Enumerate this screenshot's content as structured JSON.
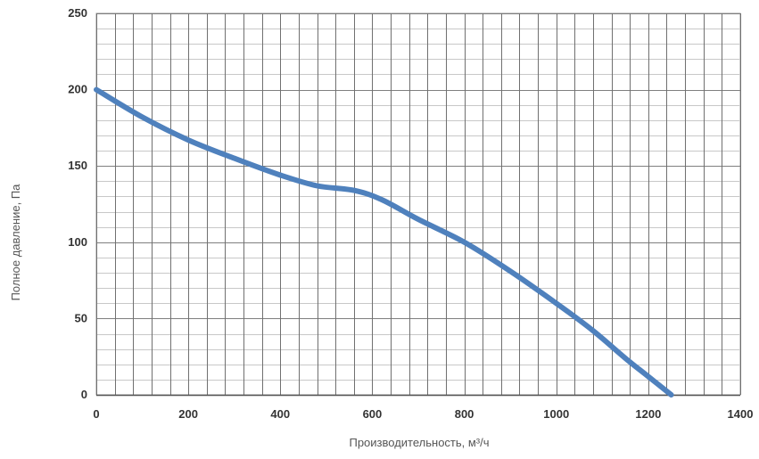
{
  "chart_data": {
    "type": "line",
    "title": "",
    "xlabel": "Производительность, м³/ч",
    "ylabel": "Полное давление, Па",
    "xlim": [
      0,
      1400
    ],
    "ylim": [
      0,
      250
    ],
    "x_ticks": [
      "0",
      "200",
      "400",
      "600",
      "800",
      "1000",
      "1200",
      "1400"
    ],
    "y_ticks": [
      "0",
      "50",
      "100",
      "150",
      "200",
      "250"
    ],
    "x_minor_step": 40,
    "y_minor_step": 10,
    "grid": true,
    "legend": "none",
    "line_color": "#4f81bd",
    "series": [
      {
        "x": [
          0,
          100,
          200,
          300,
          400,
          480,
          560,
          620,
          700,
          800,
          900,
          1000,
          1080,
          1150,
          1200,
          1250
        ],
        "y": [
          200,
          182,
          167,
          155,
          144,
          137,
          134,
          128,
          115,
          100,
          81,
          60,
          42,
          24,
          12,
          0
        ]
      }
    ]
  }
}
